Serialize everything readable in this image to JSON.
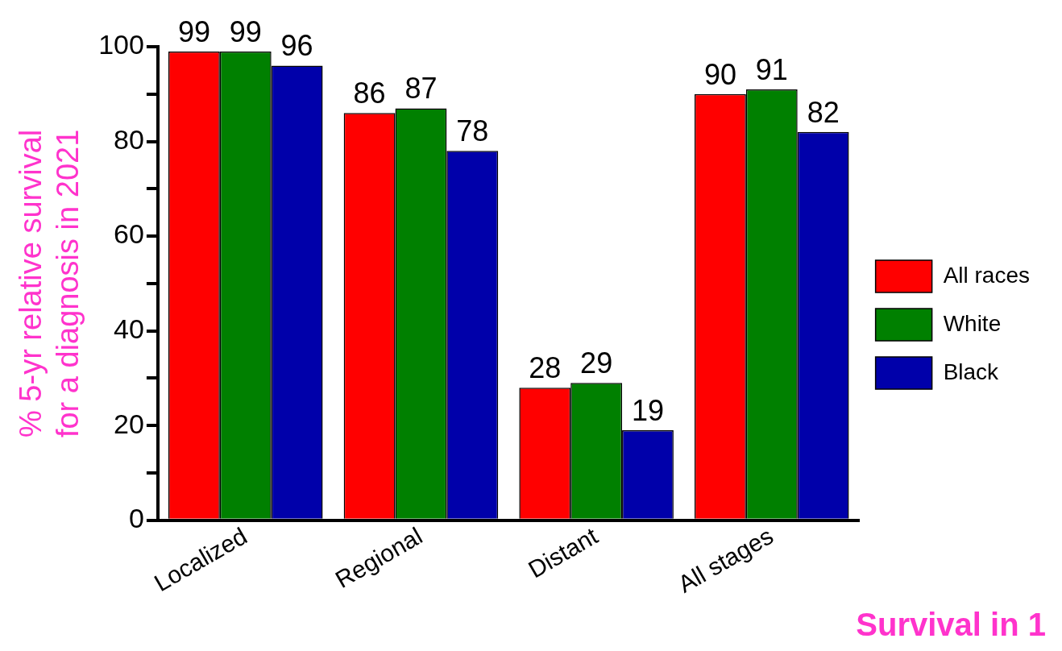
{
  "chart_data": {
    "type": "bar",
    "ylabel": "% 5-yr relative survival\nfor a diagnosis in 2021",
    "categories": [
      "Localized",
      "Regional",
      "Distant",
      "All stages"
    ],
    "series": [
      {
        "name": "All races",
        "color": "#ff0000",
        "values": [
          99,
          86,
          28,
          90
        ]
      },
      {
        "name": "White",
        "color": "#008000",
        "values": [
          99,
          87,
          29,
          91
        ]
      },
      {
        "name": "Black",
        "color": "#0000aa",
        "values": [
          96,
          78,
          19,
          82
        ]
      }
    ],
    "ylim": [
      0,
      100
    ],
    "yticks": [
      0,
      {
        "value": 10,
        "label": null
      },
      20,
      {
        "value": 30,
        "label": null
      },
      40,
      {
        "value": 50,
        "label": null
      },
      60,
      {
        "value": 70,
        "label": null
      },
      80,
      {
        "value": 90,
        "label": null
      },
      100
    ],
    "grid": false,
    "legend": "right",
    "data_labels": true,
    "annotations": [
      "Survival in 1"
    ]
  }
}
